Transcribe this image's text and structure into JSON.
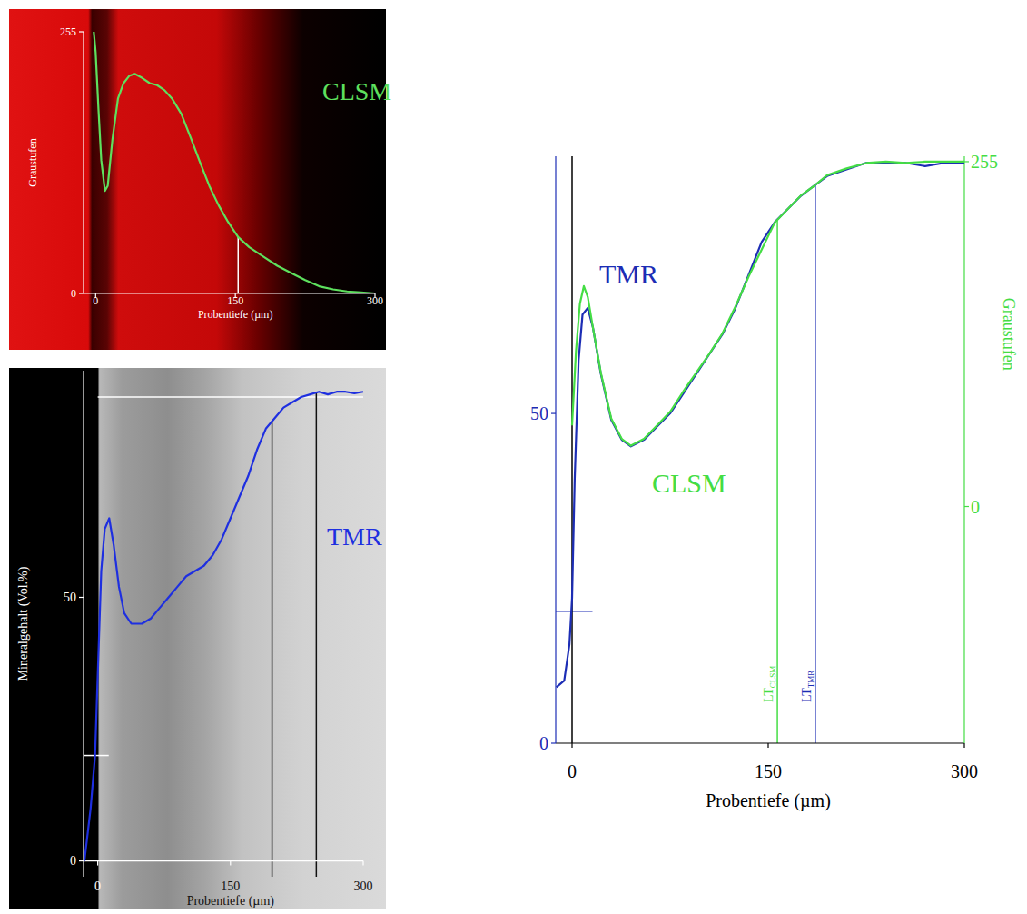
{
  "chart_data": [
    {
      "type": "line",
      "x_label": "Probentiefe (µm)",
      "y_label": "Graustufen",
      "xlim": [
        -13,
        300
      ],
      "ylim": [
        0,
        255
      ],
      "xticks": [
        0,
        150,
        300
      ],
      "yticks": [
        0,
        255
      ],
      "series": [
        {
          "name": "CLSM",
          "color": "#5ee05e",
          "x": [
            -2,
            0,
            3,
            6,
            10,
            13,
            18,
            24,
            30,
            36,
            42,
            50,
            58,
            66,
            74,
            82,
            92,
            102,
            112,
            122,
            132,
            142,
            153,
            165,
            180,
            195,
            210,
            225,
            240,
            255,
            270,
            285,
            300
          ],
          "values": [
            255,
            235,
            180,
            130,
            100,
            105,
            150,
            190,
            205,
            212,
            214,
            210,
            205,
            203,
            198,
            190,
            175,
            152,
            128,
            105,
            86,
            70,
            55,
            45,
            36,
            27,
            20,
            13,
            7,
            4,
            2,
            1,
            0
          ]
        }
      ],
      "vlines": [
        {
          "x": 153,
          "color": "#ffffff"
        }
      ]
    },
    {
      "type": "line",
      "x_label": "Probentiefe (µm)",
      "y_label": "Mineralgehalt (Vol.%)",
      "xlim": [
        -16,
        300
      ],
      "ylim": [
        -3,
        93
      ],
      "xticks": [
        0,
        150,
        300
      ],
      "yticks": [
        0,
        50
      ],
      "series": [
        {
          "name": "TMR",
          "color": "#1e2fe0",
          "x": [
            -15,
            -8,
            -3,
            0,
            4,
            8,
            13,
            18,
            24,
            30,
            38,
            50,
            60,
            70,
            80,
            90,
            100,
            110,
            120,
            130,
            140,
            150,
            160,
            170,
            180,
            190,
            200,
            210,
            220,
            230,
            240,
            250,
            260,
            270,
            280,
            290,
            300
          ],
          "values": [
            0,
            10,
            20,
            35,
            55,
            63,
            65,
            60,
            52,
            47,
            45,
            45,
            46,
            48,
            50,
            52,
            54,
            55,
            56,
            58,
            61,
            65,
            69,
            73,
            78,
            82,
            84,
            86,
            87,
            88,
            88.5,
            89,
            88.5,
            89,
            89,
            88.7,
            89
          ]
        }
      ],
      "vlines": [
        {
          "x": 197,
          "color": "#111111"
        },
        {
          "x": 247,
          "color": "#111111"
        }
      ],
      "hlines": [
        {
          "y": 88,
          "color": "#ffffff"
        }
      ],
      "y_markers": [
        {
          "y": 20,
          "color": "#ffffff"
        }
      ]
    },
    {
      "type": "line",
      "x_label": "Probentiefe (µm)",
      "y2_label": "Graustufen",
      "xlim": [
        -12.5,
        300
      ],
      "ylim": [
        0,
        89
      ],
      "y2lim": [
        -175,
        259
      ],
      "xticks": [
        0,
        150,
        300
      ],
      "yticks": [
        0,
        50
      ],
      "y2ticks": [
        0,
        255
      ],
      "series": [
        {
          "name": "TMR",
          "color": "#1c2db5",
          "axis": "y",
          "x": [
            -12,
            -6,
            -2,
            0,
            2,
            5,
            8,
            12,
            16,
            22,
            30,
            38,
            45,
            55,
            65,
            75,
            85,
            95,
            105,
            115,
            125,
            135,
            145,
            155,
            165,
            175,
            185,
            195,
            210,
            225,
            240,
            255,
            270,
            285,
            300
          ],
          "values": [
            8.5,
            9.5,
            15,
            22,
            40,
            58,
            65,
            66,
            63,
            56,
            49,
            46,
            45,
            46,
            48,
            50,
            53,
            56,
            59,
            62,
            66,
            71,
            76,
            79,
            81,
            83,
            84.5,
            86,
            87,
            88,
            88,
            88,
            87.5,
            88,
            88
          ]
        },
        {
          "name": "CLSM",
          "color": "#44dd44",
          "axis": "y2",
          "x": [
            0,
            3,
            6,
            9,
            12,
            16,
            22,
            30,
            38,
            45,
            55,
            65,
            75,
            85,
            95,
            105,
            115,
            125,
            135,
            145,
            155,
            165,
            175,
            185,
            195,
            210,
            225,
            240,
            255,
            270,
            285,
            300
          ],
          "values": [
            60,
            115,
            150,
            163,
            155,
            132,
            99,
            65,
            50,
            45,
            50,
            60,
            70,
            85,
            99,
            113,
            128,
            148,
            170,
            190,
            210,
            220,
            230,
            237,
            245,
            250,
            254,
            255,
            254,
            255,
            255,
            255
          ]
        }
      ],
      "vlines": [
        {
          "x": 0,
          "color": "#000000"
        },
        {
          "x": 157,
          "color": "#44dd44",
          "label": "LT",
          "subscript": "CLSM"
        },
        {
          "x": 186,
          "color": "#1c2db5",
          "label": "LT",
          "subscript": "TMR"
        }
      ],
      "y_markers": [
        {
          "y": 20,
          "color": "#1c2db5"
        }
      ]
    }
  ]
}
